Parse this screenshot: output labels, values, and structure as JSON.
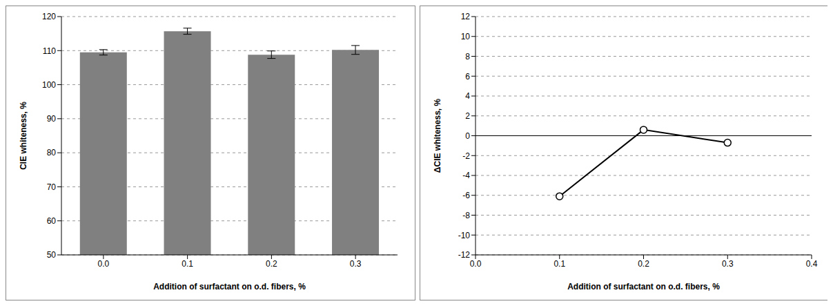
{
  "chart_data": [
    {
      "type": "bar",
      "categories": [
        "0.0",
        "0.1",
        "0.2",
        "0.3"
      ],
      "values": [
        109.5,
        115.7,
        108.8,
        110.2
      ],
      "errors": [
        0.8,
        0.9,
        1.1,
        1.3
      ],
      "color": "#808080",
      "x_label": "Addition of surfactant on o.d. fibers, %",
      "y_label": "CIE whiteness, %",
      "ylim": [
        50,
        120
      ],
      "yticks": [
        50,
        60,
        70,
        80,
        90,
        100,
        110,
        120
      ],
      "grid": true
    },
    {
      "type": "line",
      "x": [
        0.1,
        0.2,
        0.3
      ],
      "values": [
        -6.1,
        0.6,
        -0.7
      ],
      "color": "#000000",
      "marker": "circle",
      "x_label": "Addition of surfactant on o.d. fibers, %",
      "y_label": "ΔCIE whiteness, %",
      "xlim": [
        0,
        0.4
      ],
      "xticks": [
        {
          "value": 0,
          "label": "0.0"
        },
        0.1,
        0.2,
        0.3,
        0.4
      ],
      "ylim": [
        -12,
        12
      ],
      "yticks": [
        -12,
        -10,
        -8,
        -6,
        -4,
        -2,
        0,
        2,
        4,
        6,
        8,
        10,
        12
      ],
      "grid": true
    }
  ]
}
